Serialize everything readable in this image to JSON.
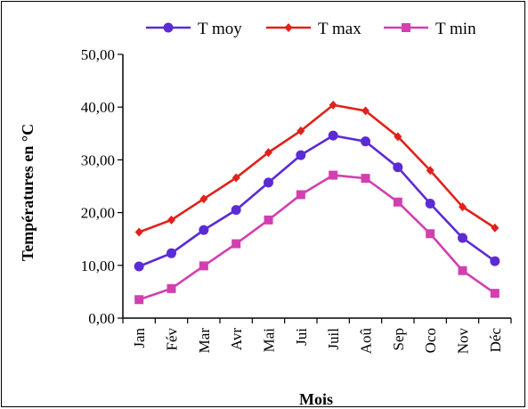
{
  "chart_data": {
    "type": "line",
    "title": "",
    "xlabel": "Mois",
    "ylabel": "Températures en °C",
    "categories": [
      "Jan",
      "Fév",
      "Mar",
      "Avr",
      "Mai",
      "Jui",
      "Juil",
      "Aoû",
      "Sep",
      "Oco",
      "Nov",
      "Déc"
    ],
    "y_ticks": [
      "0,00",
      "10,00",
      "20,00",
      "30,00",
      "40,00",
      "50,00"
    ],
    "ylim": [
      0,
      50
    ],
    "grid": false,
    "legend_position": "top",
    "series": [
      {
        "name": "T moy",
        "color": "#5b2bd6",
        "marker": "circle",
        "values": [
          9.8,
          12.3,
          16.7,
          20.5,
          25.7,
          30.9,
          34.6,
          33.5,
          28.6,
          21.7,
          15.2,
          10.8
        ]
      },
      {
        "name": "T max",
        "color": "#e0221a",
        "marker": "diamond",
        "values": [
          16.3,
          18.6,
          22.6,
          26.6,
          31.4,
          35.5,
          40.4,
          39.3,
          34.4,
          28.0,
          21.1,
          17.1
        ]
      },
      {
        "name": "T min",
        "color": "#d23fb0",
        "marker": "square",
        "values": [
          3.5,
          5.6,
          9.9,
          14.1,
          18.6,
          23.4,
          27.1,
          26.5,
          22.0,
          16.0,
          9.0,
          4.7
        ]
      }
    ]
  }
}
